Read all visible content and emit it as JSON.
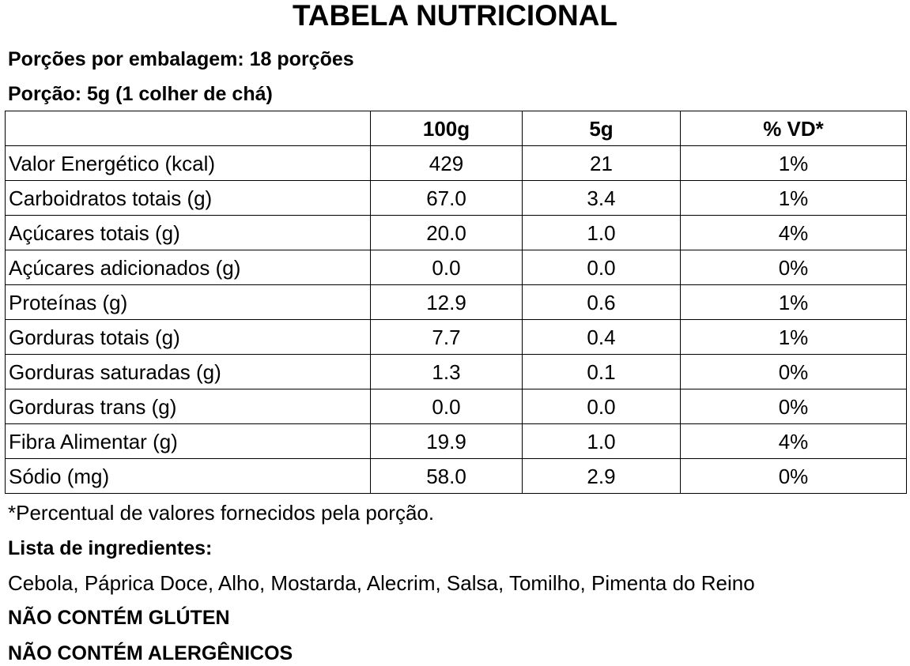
{
  "title": "TABELA NUTRICIONAL",
  "servings_per_package": "Porções por embalagem: 18 porções",
  "serving_size": "Porção: 5g (1 colher de chá)",
  "table": {
    "headers": [
      "",
      "100g",
      "5g",
      "% VD*"
    ],
    "rows": [
      [
        "Valor Energético (kcal)",
        "429",
        "21",
        "1%"
      ],
      [
        "Carboidratos totais (g)",
        "67.0",
        "3.4",
        "1%"
      ],
      [
        "Açúcares totais (g)",
        "20.0",
        "1.0",
        "4%"
      ],
      [
        "Açúcares adicionados (g)",
        "0.0",
        "0.0",
        "0%"
      ],
      [
        "Proteínas (g)",
        "12.9",
        "0.6",
        "1%"
      ],
      [
        "Gorduras totais (g)",
        "7.7",
        "0.4",
        "1%"
      ],
      [
        "Gorduras saturadas (g)",
        "1.3",
        "0.1",
        "0%"
      ],
      [
        "Gorduras trans (g)",
        "0.0",
        "0.0",
        "0%"
      ],
      [
        "Fibra Alimentar (g)",
        "19.9",
        "1.0",
        "4%"
      ],
      [
        "Sódio (mg)",
        "58.0",
        "2.9",
        "0%"
      ]
    ]
  },
  "footnote": "*Percentual de valores fornecidos pela porção.",
  "ingredients_title": "Lista de ingredientes:",
  "ingredients": "Cebola, Páprica Doce, Alho, Mostarda, Alecrim, Salsa, Tomilho, Pimenta do Reino",
  "gluten_warning": "NÃO CONTÉM GLÚTEN",
  "allergen_warning": "NÃO CONTÉM ALERGÊNICOS"
}
